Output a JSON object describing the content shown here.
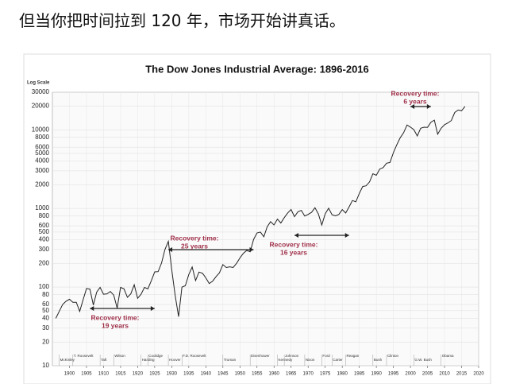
{
  "header": {
    "caption": "但当你把时间拉到 120 年，市场开始讲真话。"
  },
  "chart_data": {
    "type": "line",
    "title": "The Dow Jones Industrial Average: 1896-2016",
    "y_label": "Log Scale",
    "log_y": true,
    "grid": true,
    "color": "#222222",
    "xlim": [
      1895,
      2020
    ],
    "ylim": [
      10,
      30000
    ],
    "xticks": [
      1900,
      1905,
      1910,
      1915,
      1920,
      1925,
      1930,
      1935,
      1940,
      1945,
      1950,
      1955,
      1960,
      1965,
      1970,
      1975,
      1980,
      1985,
      1990,
      1995,
      2000,
      2005,
      2010,
      2015,
      2020
    ],
    "yticks": [
      10,
      20,
      30,
      40,
      50,
      60,
      80,
      100,
      200,
      300,
      400,
      500,
      600,
      800,
      1000,
      2000,
      3000,
      4000,
      5000,
      6000,
      8000,
      10000,
      20000,
      30000
    ],
    "x": [
      1896,
      1897,
      1898,
      1899,
      1900,
      1901,
      1902,
      1903,
      1904,
      1905,
      1906,
      1907,
      1908,
      1909,
      1910,
      1911,
      1912,
      1913,
      1914,
      1915,
      1916,
      1917,
      1918,
      1919,
      1920,
      1921,
      1922,
      1923,
      1924,
      1925,
      1926,
      1927,
      1928,
      1929,
      1930,
      1931,
      1932,
      1933,
      1934,
      1935,
      1936,
      1937,
      1938,
      1939,
      1940,
      1941,
      1942,
      1943,
      1944,
      1945,
      1946,
      1947,
      1948,
      1949,
      1950,
      1951,
      1952,
      1953,
      1954,
      1955,
      1956,
      1957,
      1958,
      1959,
      1960,
      1961,
      1962,
      1963,
      1964,
      1965,
      1966,
      1967,
      1968,
      1969,
      1970,
      1971,
      1972,
      1973,
      1974,
      1975,
      1976,
      1977,
      1978,
      1979,
      1980,
      1981,
      1982,
      1983,
      1984,
      1985,
      1986,
      1987,
      1988,
      1989,
      1990,
      1991,
      1992,
      1993,
      1994,
      1995,
      1996,
      1997,
      1998,
      1999,
      2000,
      2001,
      2002,
      2003,
      2004,
      2005,
      2006,
      2007,
      2008,
      2009,
      2010,
      2011,
      2012,
      2013,
      2014,
      2015,
      2016
    ],
    "values": [
      40,
      49,
      60,
      66,
      70,
      64,
      64,
      49,
      69,
      96,
      94,
      59,
      86,
      99,
      81,
      82,
      88,
      79,
      54,
      99,
      95,
      74,
      82,
      107,
      72,
      81,
      99,
      95,
      120,
      156,
      157,
      202,
      300,
      381,
      165,
      78,
      42,
      100,
      104,
      144,
      180,
      121,
      155,
      150,
      131,
      111,
      119,
      136,
      152,
      193,
      177,
      181,
      177,
      200,
      235,
      269,
      292,
      281,
      404,
      488,
      500,
      436,
      584,
      679,
      616,
      731,
      652,
      763,
      874,
      969,
      786,
      905,
      944,
      800,
      839,
      890,
      1020,
      851,
      616,
      852,
      1005,
      831,
      805,
      839,
      964,
      875,
      1047,
      1259,
      1212,
      1547,
      1896,
      1939,
      2169,
      2753,
      2634,
      3169,
      3301,
      3754,
      3834,
      5117,
      6448,
      7908,
      9181,
      11497,
      10787,
      10021,
      8342,
      10454,
      10783,
      10718,
      12463,
      13265,
      8776,
      10428,
      11578,
      12218,
      13104,
      16577,
      17823,
      17425,
      19763
    ],
    "annotations": [
      {
        "label": "Recovery time:",
        "duration": "19 years",
        "start": 1906,
        "end": 1925
      },
      {
        "label": "Recovery time:",
        "duration": "25 years",
        "start": 1929,
        "end": 1954
      },
      {
        "label": "Recovery time:",
        "duration": "16 years",
        "start": 1966,
        "end": 1982
      },
      {
        "label": "Recovery time:",
        "duration": "6 years",
        "start": 2000,
        "end": 2006
      }
    ],
    "presidents": [
      {
        "name": "McKinley",
        "start": 1897
      },
      {
        "name": "T. Roosevelt",
        "start": 1901
      },
      {
        "name": "Taft",
        "start": 1909
      },
      {
        "name": "Wilson",
        "start": 1913
      },
      {
        "name": "Harding",
        "start": 1921
      },
      {
        "name": "Coolidge",
        "start": 1923
      },
      {
        "name": "Hoover",
        "start": 1929
      },
      {
        "name": "F.D. Roosevelt",
        "start": 1933
      },
      {
        "name": "Truman",
        "start": 1945
      },
      {
        "name": "Eisenhower",
        "start": 1953
      },
      {
        "name": "Kennedy",
        "start": 1961
      },
      {
        "name": "Johnson",
        "start": 1963
      },
      {
        "name": "Nixon",
        "start": 1969
      },
      {
        "name": "Ford",
        "start": 1974
      },
      {
        "name": "Carter",
        "start": 1977
      },
      {
        "name": "Reagan",
        "start": 1981
      },
      {
        "name": "Bush",
        "start": 1989
      },
      {
        "name": "Clinton",
        "start": 1993
      },
      {
        "name": "G.W. Bush",
        "start": 2001
      },
      {
        "name": "Obama",
        "start": 2009
      }
    ]
  }
}
